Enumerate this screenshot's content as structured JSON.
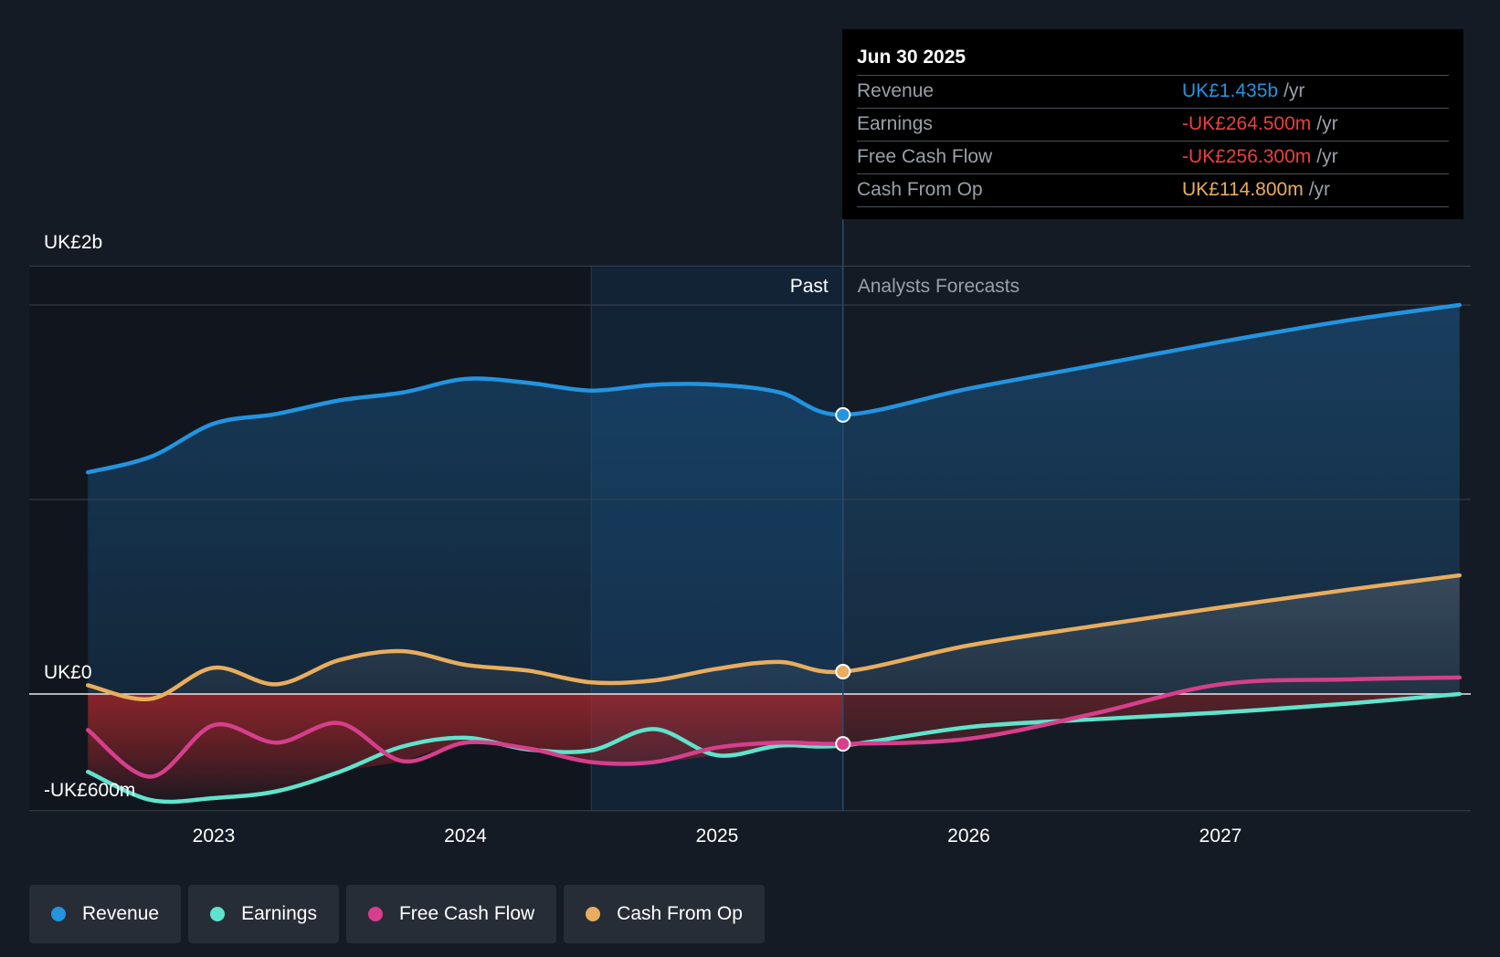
{
  "chart_data": {
    "type": "area",
    "currency_unit": "UK£ millions",
    "y_axis_labels": [
      {
        "value": 2000,
        "label": "UK£2b"
      },
      {
        "value": 0,
        "label": "UK£0"
      },
      {
        "value": -600,
        "label": "-UK£600m"
      }
    ],
    "ylim": [
      -600,
      2200
    ],
    "xlim": [
      2022.5,
      2027.95
    ],
    "x_ticks": [
      {
        "value": 2023,
        "label": "2023"
      },
      {
        "value": 2024,
        "label": "2024"
      },
      {
        "value": 2025,
        "label": "2025"
      },
      {
        "value": 2026,
        "label": "2026"
      },
      {
        "value": 2027,
        "label": "2027"
      }
    ],
    "past_label": "Past",
    "forecast_label": "Analysts Forecasts",
    "past_end_x": 2025.5,
    "highlight_start_x": 2024.5,
    "series": [
      {
        "name": "Revenue",
        "key": "revenue",
        "color": "#2394df",
        "points": [
          [
            2022.5,
            1140
          ],
          [
            2022.75,
            1220
          ],
          [
            2023.0,
            1390
          ],
          [
            2023.25,
            1440
          ],
          [
            2023.5,
            1510
          ],
          [
            2023.75,
            1550
          ],
          [
            2024.0,
            1620
          ],
          [
            2024.25,
            1600
          ],
          [
            2024.5,
            1560
          ],
          [
            2024.75,
            1590
          ],
          [
            2025.0,
            1590
          ],
          [
            2025.25,
            1550
          ],
          [
            2025.5,
            1435
          ],
          [
            2026.0,
            1570
          ],
          [
            2026.5,
            1690
          ],
          [
            2027.0,
            1810
          ],
          [
            2027.5,
            1920
          ],
          [
            2027.95,
            2000
          ]
        ]
      },
      {
        "name": "Earnings",
        "key": "earnings",
        "color": "#5fe3cc",
        "points": [
          [
            2022.5,
            -400
          ],
          [
            2022.75,
            -545
          ],
          [
            2023.0,
            -535
          ],
          [
            2023.25,
            -500
          ],
          [
            2023.5,
            -400
          ],
          [
            2023.75,
            -270
          ],
          [
            2024.0,
            -225
          ],
          [
            2024.25,
            -285
          ],
          [
            2024.5,
            -290
          ],
          [
            2024.75,
            -180
          ],
          [
            2025.0,
            -315
          ],
          [
            2025.25,
            -265
          ],
          [
            2025.5,
            -264.5
          ],
          [
            2026.0,
            -170
          ],
          [
            2026.5,
            -130
          ],
          [
            2027.0,
            -95
          ],
          [
            2027.5,
            -50
          ],
          [
            2027.95,
            0
          ]
        ]
      },
      {
        "name": "Free Cash Flow",
        "key": "fcf",
        "color": "#d63f8c",
        "points": [
          [
            2022.5,
            -185
          ],
          [
            2022.75,
            -425
          ],
          [
            2023.0,
            -160
          ],
          [
            2023.25,
            -250
          ],
          [
            2023.5,
            -150
          ],
          [
            2023.75,
            -345
          ],
          [
            2024.0,
            -250
          ],
          [
            2024.25,
            -280
          ],
          [
            2024.5,
            -350
          ],
          [
            2024.75,
            -350
          ],
          [
            2025.0,
            -275
          ],
          [
            2025.25,
            -250
          ],
          [
            2025.5,
            -256.3
          ],
          [
            2026.0,
            -230
          ],
          [
            2026.5,
            -100
          ],
          [
            2027.0,
            50
          ],
          [
            2027.5,
            75
          ],
          [
            2027.95,
            85
          ]
        ]
      },
      {
        "name": "Cash From Op",
        "key": "cfo",
        "color": "#e8ad5e",
        "points": [
          [
            2022.5,
            45
          ],
          [
            2022.75,
            -25
          ],
          [
            2023.0,
            135
          ],
          [
            2023.25,
            50
          ],
          [
            2023.5,
            175
          ],
          [
            2023.75,
            220
          ],
          [
            2024.0,
            150
          ],
          [
            2024.25,
            120
          ],
          [
            2024.5,
            60
          ],
          [
            2024.75,
            70
          ],
          [
            2025.0,
            130
          ],
          [
            2025.25,
            165
          ],
          [
            2025.5,
            114.8
          ],
          [
            2026.0,
            250
          ],
          [
            2026.5,
            350
          ],
          [
            2027.0,
            445
          ],
          [
            2027.5,
            535
          ],
          [
            2027.95,
            610
          ]
        ]
      }
    ],
    "tooltip": {
      "date": "Jun 30 2025",
      "x": 2025.5,
      "rows": [
        {
          "label": "Revenue",
          "value": "UK£1.435b",
          "unit": "/yr",
          "color": "#2394df"
        },
        {
          "label": "Earnings",
          "value": "-UK£264.500m",
          "unit": "/yr",
          "color": "#e8413f"
        },
        {
          "label": "Free Cash Flow",
          "value": "-UK£256.300m",
          "unit": "/yr",
          "color": "#e8413f"
        },
        {
          "label": "Cash From Op",
          "value": "UK£114.800m",
          "unit": "/yr",
          "color": "#e8ad5e"
        }
      ]
    },
    "legend": [
      {
        "label": "Revenue",
        "color": "#2394df"
      },
      {
        "label": "Earnings",
        "color": "#5fe3cc"
      },
      {
        "label": "Free Cash Flow",
        "color": "#d63f8c"
      },
      {
        "label": "Cash From Op",
        "color": "#e8ad5e"
      }
    ]
  }
}
